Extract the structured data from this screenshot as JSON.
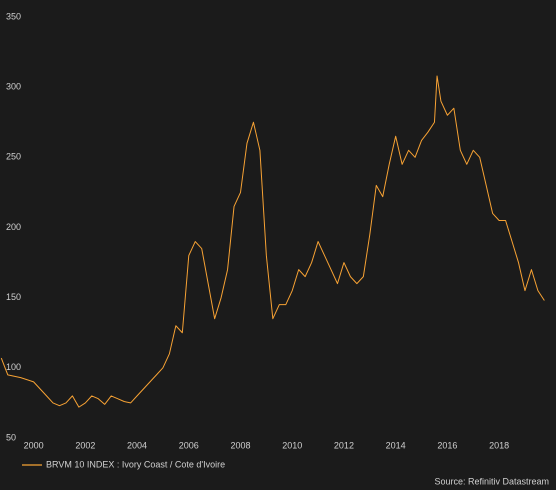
{
  "chart_data": {
    "type": "line",
    "x": [
      1998.75,
      1999.0,
      1999.5,
      2000.0,
      2000.25,
      2000.5,
      2000.75,
      2001.0,
      2001.25,
      2001.5,
      2001.75,
      2002.0,
      2002.25,
      2002.5,
      2002.75,
      2003.0,
      2003.25,
      2003.5,
      2003.75,
      2004.0,
      2004.25,
      2004.5,
      2004.75,
      2005.0,
      2005.25,
      2005.5,
      2005.75,
      2006.0,
      2006.25,
      2006.5,
      2006.75,
      2007.0,
      2007.25,
      2007.5,
      2007.75,
      2008.0,
      2008.25,
      2008.5,
      2008.75,
      2009.0,
      2009.25,
      2009.5,
      2009.75,
      2010.0,
      2010.25,
      2010.5,
      2010.75,
      2011.0,
      2011.25,
      2011.5,
      2011.75,
      2012.0,
      2012.25,
      2012.5,
      2012.75,
      2013.0,
      2013.25,
      2013.5,
      2013.75,
      2014.0,
      2014.25,
      2014.5,
      2014.75,
      2015.0,
      2015.25,
      2015.5,
      2015.6,
      2015.75,
      2016.0,
      2016.25,
      2016.5,
      2016.75,
      2017.0,
      2017.25,
      2017.5,
      2017.75,
      2018.0,
      2018.25,
      2018.5,
      2018.75,
      2019.0,
      2019.25,
      2019.5,
      2019.75
    ],
    "series": [
      {
        "name": "BRVM 10 INDEX : Ivory Coast / Cote d'Ivoire",
        "color": "#f7a234",
        "values": [
          107,
          95,
          93,
          90,
          85,
          80,
          75,
          73,
          75,
          80,
          72,
          75,
          80,
          78,
          74,
          80,
          78,
          76,
          75,
          80,
          85,
          90,
          95,
          100,
          110,
          130,
          125,
          180,
          190,
          185,
          160,
          135,
          150,
          170,
          215,
          225,
          260,
          275,
          255,
          180,
          135,
          145,
          145,
          155,
          170,
          165,
          175,
          190,
          180,
          170,
          160,
          175,
          165,
          160,
          165,
          195,
          230,
          222,
          245,
          265,
          245,
          255,
          250,
          262,
          268,
          275,
          308,
          290,
          280,
          285,
          255,
          245,
          255,
          250,
          230,
          210,
          205,
          205,
          190,
          175,
          155,
          170,
          155,
          148
        ]
      }
    ],
    "xlim": [
      1998.7,
      2020.2
    ],
    "xticks": [
      2000,
      2002,
      2004,
      2006,
      2008,
      2010,
      2012,
      2014,
      2016,
      2018
    ],
    "ylim": [
      50,
      350
    ],
    "yticks": [
      50,
      100,
      150,
      200,
      250,
      300,
      350
    ],
    "legend": "bottom-left",
    "source": "Source: Refinitiv Datastream"
  }
}
